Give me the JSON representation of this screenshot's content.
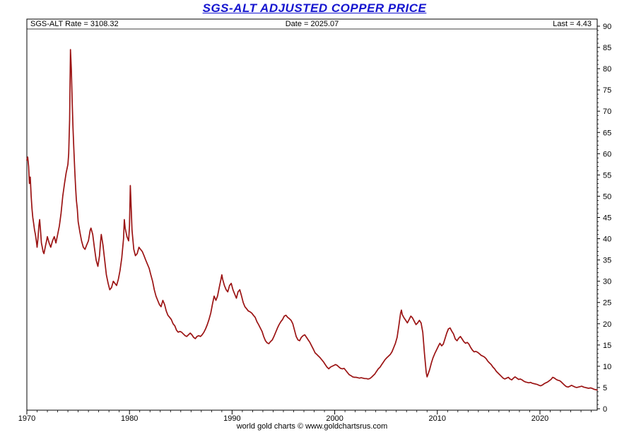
{
  "title": "SGS-ALT ADJUSTED COPPER PRICE",
  "header": {
    "left": "SGS-ALT Rate = 3108.32",
    "center": "Date = 2025.07",
    "right": "Last = 4.43"
  },
  "footer": "world gold charts © www.goldchartsrus.com",
  "colors": {
    "title": "#1515cf",
    "line": "#9b1313",
    "axis": "#000000",
    "background": "#ffffff"
  },
  "chart_data": {
    "type": "line",
    "title": "SGS-ALT ADJUSTED COPPER PRICE",
    "xlabel": "",
    "ylabel": "",
    "legend": "none",
    "grid": false,
    "xlim": [
      1970,
      2025.58
    ],
    "ylim": [
      0,
      90
    ],
    "x_ticks": [
      1970,
      1980,
      1990,
      2000,
      2010,
      2020
    ],
    "y_ticks": [
      0,
      5,
      10,
      15,
      20,
      25,
      30,
      35,
      40,
      45,
      50,
      55,
      60,
      65,
      70,
      75,
      80,
      85,
      90
    ],
    "series_name": "SGS-ALT adjusted copper price",
    "last_value": 4.43,
    "last_date": "2025.07",
    "points": [
      [
        1970.0,
        58.5
      ],
      [
        1970.08,
        59.2
      ],
      [
        1970.17,
        57
      ],
      [
        1970.25,
        53
      ],
      [
        1970.33,
        54.5
      ],
      [
        1970.42,
        50
      ],
      [
        1970.5,
        47
      ],
      [
        1970.58,
        45
      ],
      [
        1970.67,
        43.5
      ],
      [
        1970.75,
        42
      ],
      [
        1970.83,
        41
      ],
      [
        1970.92,
        39.5
      ],
      [
        1971.0,
        38
      ],
      [
        1971.08,
        40
      ],
      [
        1971.17,
        43
      ],
      [
        1971.25,
        44.5
      ],
      [
        1971.33,
        42
      ],
      [
        1971.42,
        39
      ],
      [
        1971.5,
        38
      ],
      [
        1971.58,
        37
      ],
      [
        1971.67,
        36.5
      ],
      [
        1971.75,
        37.5
      ],
      [
        1971.83,
        38.5
      ],
      [
        1971.92,
        39.5
      ],
      [
        1972.0,
        40.5
      ],
      [
        1972.17,
        39
      ],
      [
        1972.33,
        38
      ],
      [
        1972.5,
        39.5
      ],
      [
        1972.67,
        40.5
      ],
      [
        1972.83,
        39
      ],
      [
        1973.0,
        41
      ],
      [
        1973.17,
        43
      ],
      [
        1973.33,
        46
      ],
      [
        1973.5,
        50
      ],
      [
        1973.67,
        53
      ],
      [
        1973.83,
        55.5
      ],
      [
        1974.0,
        57.5
      ],
      [
        1974.08,
        60
      ],
      [
        1974.17,
        68
      ],
      [
        1974.25,
        84.5
      ],
      [
        1974.33,
        80
      ],
      [
        1974.42,
        72
      ],
      [
        1974.5,
        66
      ],
      [
        1974.58,
        61
      ],
      [
        1974.67,
        56
      ],
      [
        1974.75,
        52
      ],
      [
        1974.83,
        49
      ],
      [
        1974.92,
        47
      ],
      [
        1975.0,
        44
      ],
      [
        1975.17,
        41.5
      ],
      [
        1975.33,
        39.5
      ],
      [
        1975.5,
        38
      ],
      [
        1975.67,
        37.5
      ],
      [
        1975.83,
        38.5
      ],
      [
        1976.0,
        39.5
      ],
      [
        1976.17,
        42
      ],
      [
        1976.25,
        42.5
      ],
      [
        1976.42,
        41
      ],
      [
        1976.58,
        38
      ],
      [
        1976.75,
        35
      ],
      [
        1976.92,
        33.5
      ],
      [
        1977.08,
        36
      ],
      [
        1977.17,
        39
      ],
      [
        1977.25,
        41
      ],
      [
        1977.42,
        38.5
      ],
      [
        1977.58,
        35
      ],
      [
        1977.75,
        31.5
      ],
      [
        1977.92,
        29.5
      ],
      [
        1978.08,
        28
      ],
      [
        1978.25,
        28.5
      ],
      [
        1978.42,
        30
      ],
      [
        1978.58,
        29.5
      ],
      [
        1978.75,
        29
      ],
      [
        1978.92,
        30.5
      ],
      [
        1979.08,
        32.5
      ],
      [
        1979.25,
        35.5
      ],
      [
        1979.42,
        40
      ],
      [
        1979.5,
        44.5
      ],
      [
        1979.58,
        42.5
      ],
      [
        1979.75,
        40.5
      ],
      [
        1979.92,
        39.5
      ],
      [
        1980.0,
        43
      ],
      [
        1980.08,
        52.5
      ],
      [
        1980.17,
        47
      ],
      [
        1980.25,
        42
      ],
      [
        1980.42,
        37.5
      ],
      [
        1980.58,
        36
      ],
      [
        1980.75,
        36.5
      ],
      [
        1980.92,
        38
      ],
      [
        1981.08,
        37.5
      ],
      [
        1981.25,
        37
      ],
      [
        1981.42,
        36
      ],
      [
        1981.58,
        35
      ],
      [
        1981.75,
        34
      ],
      [
        1981.92,
        33
      ],
      [
        1982.08,
        31.5
      ],
      [
        1982.25,
        30
      ],
      [
        1982.42,
        28
      ],
      [
        1982.58,
        26.5
      ],
      [
        1982.75,
        25.5
      ],
      [
        1982.92,
        24.5
      ],
      [
        1983.08,
        24
      ],
      [
        1983.25,
        25.5
      ],
      [
        1983.42,
        24.5
      ],
      [
        1983.58,
        23
      ],
      [
        1983.75,
        22
      ],
      [
        1983.92,
        21.5
      ],
      [
        1984.08,
        21
      ],
      [
        1984.25,
        20
      ],
      [
        1984.42,
        19.5
      ],
      [
        1984.58,
        18.5
      ],
      [
        1984.75,
        18
      ],
      [
        1984.92,
        18.2
      ],
      [
        1985.08,
        18
      ],
      [
        1985.25,
        17.6
      ],
      [
        1985.42,
        17.2
      ],
      [
        1985.58,
        17
      ],
      [
        1985.75,
        17.4
      ],
      [
        1985.92,
        17.8
      ],
      [
        1986.08,
        17.4
      ],
      [
        1986.25,
        16.8
      ],
      [
        1986.42,
        16.5
      ],
      [
        1986.58,
        17
      ],
      [
        1986.75,
        17.2
      ],
      [
        1986.92,
        17
      ],
      [
        1987.08,
        17.4
      ],
      [
        1987.25,
        18
      ],
      [
        1987.42,
        18.8
      ],
      [
        1987.58,
        19.8
      ],
      [
        1987.75,
        21
      ],
      [
        1987.92,
        22.5
      ],
      [
        1988.08,
        24.5
      ],
      [
        1988.25,
        26.5
      ],
      [
        1988.42,
        25.5
      ],
      [
        1988.58,
        26.5
      ],
      [
        1988.75,
        28.5
      ],
      [
        1988.92,
        30.5
      ],
      [
        1989.0,
        31.5
      ],
      [
        1989.08,
        30.5
      ],
      [
        1989.25,
        29
      ],
      [
        1989.42,
        28
      ],
      [
        1989.58,
        27.5
      ],
      [
        1989.75,
        29
      ],
      [
        1989.92,
        29.5
      ],
      [
        1990.08,
        28
      ],
      [
        1990.25,
        27
      ],
      [
        1990.42,
        26
      ],
      [
        1990.58,
        27.5
      ],
      [
        1990.75,
        28
      ],
      [
        1990.92,
        26.5
      ],
      [
        1991.08,
        25
      ],
      [
        1991.25,
        24
      ],
      [
        1991.42,
        23.5
      ],
      [
        1991.58,
        23
      ],
      [
        1991.75,
        22.8
      ],
      [
        1991.92,
        22.5
      ],
      [
        1992.08,
        22
      ],
      [
        1992.25,
        21.5
      ],
      [
        1992.42,
        20.5
      ],
      [
        1992.58,
        19.8
      ],
      [
        1992.75,
        19
      ],
      [
        1992.92,
        18.2
      ],
      [
        1993.08,
        17
      ],
      [
        1993.25,
        16
      ],
      [
        1993.42,
        15.5
      ],
      [
        1993.58,
        15.3
      ],
      [
        1993.75,
        15.8
      ],
      [
        1993.92,
        16.2
      ],
      [
        1994.08,
        17
      ],
      [
        1994.25,
        18
      ],
      [
        1994.42,
        19
      ],
      [
        1994.58,
        19.8
      ],
      [
        1994.75,
        20.5
      ],
      [
        1994.92,
        21
      ],
      [
        1995.08,
        21.8
      ],
      [
        1995.25,
        22
      ],
      [
        1995.42,
        21.5
      ],
      [
        1995.58,
        21.2
      ],
      [
        1995.75,
        20.8
      ],
      [
        1995.92,
        20
      ],
      [
        1996.08,
        18.5
      ],
      [
        1996.25,
        17
      ],
      [
        1996.42,
        16.2
      ],
      [
        1996.58,
        16
      ],
      [
        1996.75,
        16.8
      ],
      [
        1996.92,
        17.2
      ],
      [
        1997.08,
        17.4
      ],
      [
        1997.25,
        16.8
      ],
      [
        1997.42,
        16.2
      ],
      [
        1997.58,
        15.6
      ],
      [
        1997.75,
        14.8
      ],
      [
        1997.92,
        14
      ],
      [
        1998.08,
        13.2
      ],
      [
        1998.25,
        12.8
      ],
      [
        1998.42,
        12.4
      ],
      [
        1998.58,
        12
      ],
      [
        1998.75,
        11.5
      ],
      [
        1998.92,
        11
      ],
      [
        1999.08,
        10.4
      ],
      [
        1999.25,
        9.8
      ],
      [
        1999.42,
        9.4
      ],
      [
        1999.58,
        9.8
      ],
      [
        1999.75,
        10
      ],
      [
        1999.92,
        10.2
      ],
      [
        2000.08,
        10.4
      ],
      [
        2000.25,
        10.2
      ],
      [
        2000.42,
        9.8
      ],
      [
        2000.58,
        9.5
      ],
      [
        2000.75,
        9.4
      ],
      [
        2000.92,
        9.5
      ],
      [
        2001.08,
        9
      ],
      [
        2001.25,
        8.5
      ],
      [
        2001.42,
        8
      ],
      [
        2001.58,
        7.8
      ],
      [
        2001.75,
        7.5
      ],
      [
        2001.92,
        7.4
      ],
      [
        2002.08,
        7.4
      ],
      [
        2002.25,
        7.3
      ],
      [
        2002.42,
        7.2
      ],
      [
        2002.58,
        7.3
      ],
      [
        2002.75,
        7.2
      ],
      [
        2002.92,
        7.1
      ],
      [
        2003.08,
        7.1
      ],
      [
        2003.25,
        7
      ],
      [
        2003.42,
        7.1
      ],
      [
        2003.58,
        7.4
      ],
      [
        2003.75,
        7.8
      ],
      [
        2003.92,
        8.2
      ],
      [
        2004.08,
        8.8
      ],
      [
        2004.25,
        9.4
      ],
      [
        2004.42,
        9.8
      ],
      [
        2004.58,
        10.4
      ],
      [
        2004.75,
        11
      ],
      [
        2004.92,
        11.6
      ],
      [
        2005.08,
        12
      ],
      [
        2005.25,
        12.4
      ],
      [
        2005.42,
        12.8
      ],
      [
        2005.58,
        13.4
      ],
      [
        2005.75,
        14.4
      ],
      [
        2005.92,
        15.4
      ],
      [
        2006.08,
        16.8
      ],
      [
        2006.25,
        19.5
      ],
      [
        2006.42,
        22.5
      ],
      [
        2006.5,
        23.2
      ],
      [
        2006.58,
        22.2
      ],
      [
        2006.75,
        21.4
      ],
      [
        2006.92,
        20.8
      ],
      [
        2007.08,
        20.2
      ],
      [
        2007.25,
        21
      ],
      [
        2007.42,
        21.8
      ],
      [
        2007.58,
        21.4
      ],
      [
        2007.75,
        20.6
      ],
      [
        2007.92,
        19.8
      ],
      [
        2008.08,
        20.2
      ],
      [
        2008.25,
        20.8
      ],
      [
        2008.42,
        20.2
      ],
      [
        2008.58,
        18
      ],
      [
        2008.75,
        13
      ],
      [
        2008.92,
        8.5
      ],
      [
        2009.0,
        7.5
      ],
      [
        2009.08,
        8
      ],
      [
        2009.25,
        9.2
      ],
      [
        2009.42,
        10.8
      ],
      [
        2009.58,
        12
      ],
      [
        2009.75,
        13
      ],
      [
        2009.92,
        13.8
      ],
      [
        2010.08,
        14.6
      ],
      [
        2010.25,
        15.4
      ],
      [
        2010.42,
        14.8
      ],
      [
        2010.58,
        15.2
      ],
      [
        2010.75,
        16.5
      ],
      [
        2010.92,
        17.8
      ],
      [
        2011.08,
        18.8
      ],
      [
        2011.25,
        19
      ],
      [
        2011.42,
        18.2
      ],
      [
        2011.58,
        17.6
      ],
      [
        2011.75,
        16.4
      ],
      [
        2011.92,
        16
      ],
      [
        2012.08,
        16.6
      ],
      [
        2012.25,
        17
      ],
      [
        2012.42,
        16.4
      ],
      [
        2012.58,
        15.8
      ],
      [
        2012.75,
        15.4
      ],
      [
        2012.92,
        15.6
      ],
      [
        2013.08,
        15.2
      ],
      [
        2013.25,
        14.4
      ],
      [
        2013.42,
        13.8
      ],
      [
        2013.58,
        13.4
      ],
      [
        2013.75,
        13.5
      ],
      [
        2013.92,
        13.3
      ],
      [
        2014.08,
        13
      ],
      [
        2014.25,
        12.6
      ],
      [
        2014.42,
        12.4
      ],
      [
        2014.58,
        12.2
      ],
      [
        2014.75,
        11.8
      ],
      [
        2014.92,
        11.2
      ],
      [
        2015.08,
        10.8
      ],
      [
        2015.25,
        10.4
      ],
      [
        2015.42,
        9.8
      ],
      [
        2015.58,
        9.4
      ],
      [
        2015.75,
        8.8
      ],
      [
        2015.92,
        8.4
      ],
      [
        2016.08,
        8
      ],
      [
        2016.25,
        7.6
      ],
      [
        2016.42,
        7.2
      ],
      [
        2016.58,
        7
      ],
      [
        2016.75,
        7.2
      ],
      [
        2016.92,
        7.4
      ],
      [
        2017.08,
        7
      ],
      [
        2017.25,
        6.8
      ],
      [
        2017.42,
        7.2
      ],
      [
        2017.58,
        7.5
      ],
      [
        2017.75,
        7.2
      ],
      [
        2017.92,
        6.9
      ],
      [
        2018.08,
        7
      ],
      [
        2018.25,
        6.8
      ],
      [
        2018.42,
        6.5
      ],
      [
        2018.58,
        6.3
      ],
      [
        2018.75,
        6.2
      ],
      [
        2018.92,
        6.1
      ],
      [
        2019.08,
        6.2
      ],
      [
        2019.25,
        6
      ],
      [
        2019.42,
        5.9
      ],
      [
        2019.58,
        5.8
      ],
      [
        2019.75,
        5.7
      ],
      [
        2019.92,
        5.5
      ],
      [
        2020.08,
        5.4
      ],
      [
        2020.25,
        5.6
      ],
      [
        2020.42,
        5.9
      ],
      [
        2020.58,
        6.1
      ],
      [
        2020.75,
        6.3
      ],
      [
        2020.92,
        6.6
      ],
      [
        2021.08,
        6.9
      ],
      [
        2021.25,
        7.4
      ],
      [
        2021.42,
        7.2
      ],
      [
        2021.58,
        6.9
      ],
      [
        2021.75,
        6.7
      ],
      [
        2021.92,
        6.6
      ],
      [
        2022.08,
        6.3
      ],
      [
        2022.25,
        5.9
      ],
      [
        2022.42,
        5.5
      ],
      [
        2022.58,
        5.2
      ],
      [
        2022.75,
        5.1
      ],
      [
        2022.92,
        5.3
      ],
      [
        2023.08,
        5.5
      ],
      [
        2023.25,
        5.3
      ],
      [
        2023.42,
        5.1
      ],
      [
        2023.58,
        5
      ],
      [
        2023.75,
        5.1
      ],
      [
        2023.92,
        5.2
      ],
      [
        2024.08,
        5.3
      ],
      [
        2024.25,
        5.1
      ],
      [
        2024.42,
        5
      ],
      [
        2024.58,
        4.9
      ],
      [
        2024.75,
        4.8
      ],
      [
        2024.92,
        4.9
      ],
      [
        2025.08,
        4.8
      ],
      [
        2025.25,
        4.6
      ],
      [
        2025.42,
        4.5
      ],
      [
        2025.58,
        4.43
      ]
    ]
  }
}
